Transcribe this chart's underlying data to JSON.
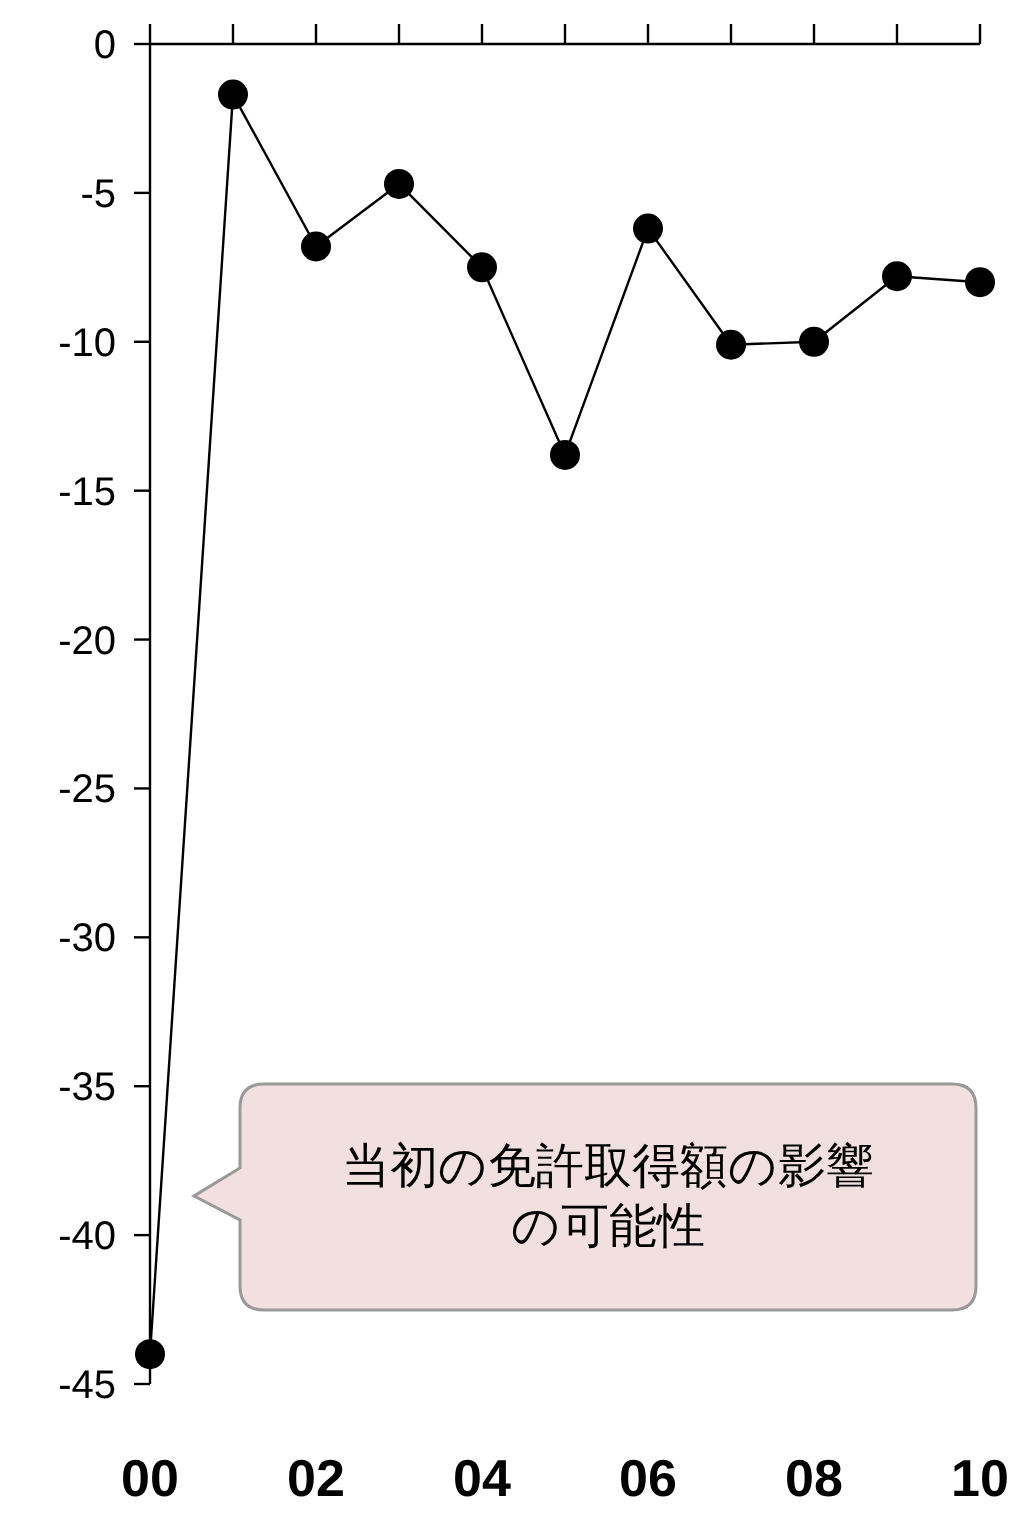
{
  "chart_data": {
    "type": "line",
    "x": [
      2000,
      2001,
      2002,
      2003,
      2004,
      2005,
      2006,
      2007,
      2008,
      2009,
      2010
    ],
    "series": [
      {
        "color": "#000000",
        "values": [
          -44,
          -1.7,
          -6.8,
          -4.7,
          -7.5,
          -13.8,
          -6.2,
          -10.1,
          -10.0,
          -7.8,
          -8.0
        ]
      }
    ],
    "xlim": [
      2000,
      2010
    ],
    "xticks": [
      {
        "value": 2000,
        "label": "00"
      },
      {
        "value": 2001,
        "label": null
      },
      {
        "value": 2002,
        "label": "02"
      },
      {
        "value": 2003,
        "label": null
      },
      {
        "value": 2004,
        "label": "04"
      },
      {
        "value": 2005,
        "label": null
      },
      {
        "value": 2006,
        "label": "06"
      },
      {
        "value": 2007,
        "label": null
      },
      {
        "value": 2008,
        "label": "08"
      },
      {
        "value": 2009,
        "label": null
      },
      {
        "value": 2010,
        "label": "10"
      }
    ],
    "ylim": [
      -45,
      0
    ],
    "yticks": [
      0,
      -5,
      -10,
      -15,
      -20,
      -25,
      -30,
      -35,
      -40,
      -45
    ],
    "marker": "circle",
    "line_style": "solid",
    "grid": false,
    "annotations": [
      "当初の免許取得額の影響の可能性"
    ]
  }
}
